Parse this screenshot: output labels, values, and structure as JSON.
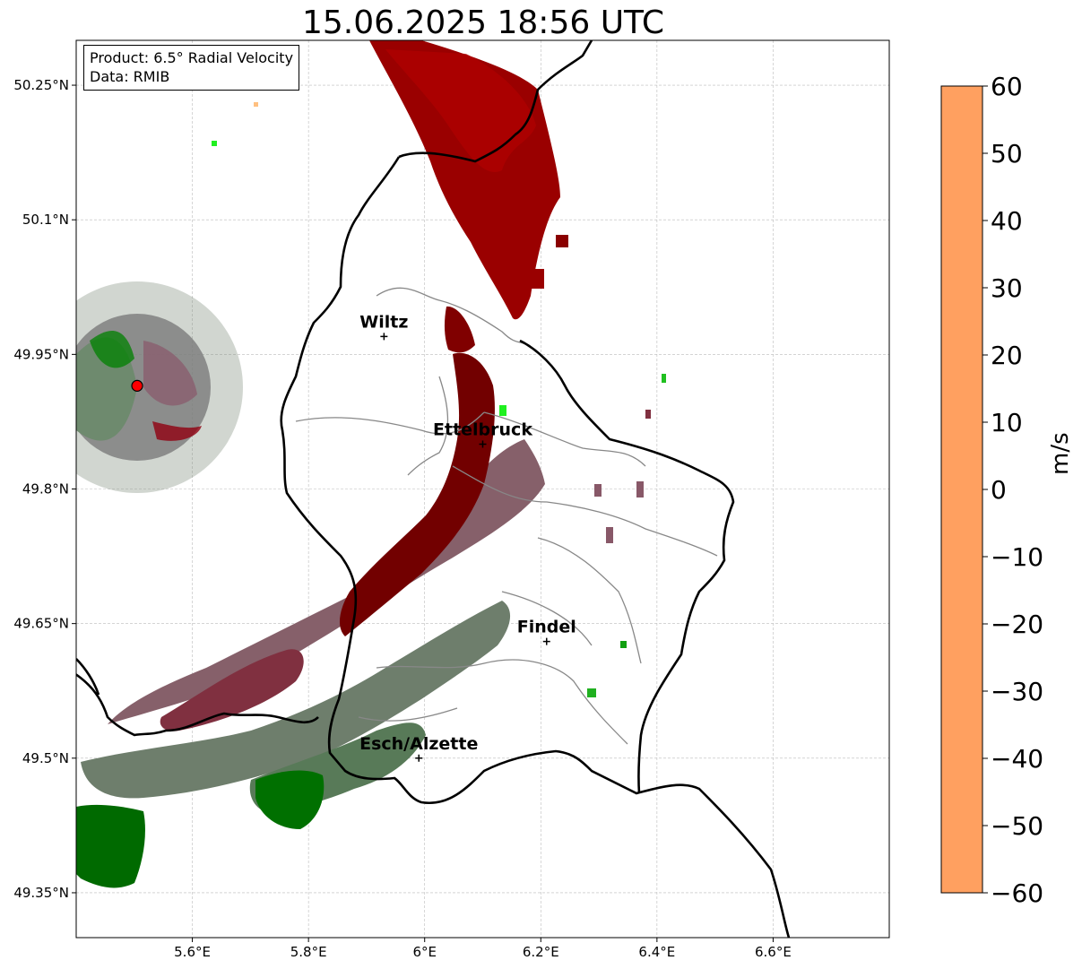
{
  "title": "15.06.2025 18:56 UTC",
  "info": {
    "line1": "Product: 6.5° Radial Velocity",
    "line2": "Data: RMIB"
  },
  "colorbar": {
    "unit": "m/s",
    "ticks": [
      "60",
      "50",
      "40",
      "30",
      "20",
      "10",
      "0",
      "−10",
      "−20",
      "−30",
      "−40",
      "−50",
      "−60"
    ],
    "stops": [
      {
        "v": 60,
        "color": "#ffa060"
      },
      {
        "v": 55,
        "color": "#ffb870"
      },
      {
        "v": 50,
        "color": "#ffd080"
      },
      {
        "v": 46,
        "color": "#ffe0a0"
      },
      {
        "v": 44,
        "color": "#ffc0b0"
      },
      {
        "v": 40,
        "color": "#ff90d0"
      },
      {
        "v": 35,
        "color": "#ff70a0"
      },
      {
        "v": 30,
        "color": "#ff5070"
      },
      {
        "v": 28,
        "color": "#ff3050"
      },
      {
        "v": 27,
        "color": "#ff0000"
      },
      {
        "v": 20,
        "color": "#d00000"
      },
      {
        "v": 15,
        "color": "#a00000"
      },
      {
        "v": 10,
        "color": "#700000"
      },
      {
        "v": 8,
        "color": "#803040"
      },
      {
        "v": 4,
        "color": "#885868"
      },
      {
        "v": 0,
        "color": "#807878"
      },
      {
        "v": -2,
        "color": "#708070"
      },
      {
        "v": -6,
        "color": "#507050"
      },
      {
        "v": -7,
        "color": "#006000"
      },
      {
        "v": -15,
        "color": "#008000"
      },
      {
        "v": -22,
        "color": "#00c000"
      },
      {
        "v": -28,
        "color": "#20ff20"
      },
      {
        "v": -32,
        "color": "#70f070"
      },
      {
        "v": -36,
        "color": "#a0f0c0"
      },
      {
        "v": -38,
        "color": "#c0f0f0"
      },
      {
        "v": -45,
        "color": "#80e8e8"
      },
      {
        "v": -53,
        "color": "#30e0e0"
      },
      {
        "v": -55,
        "color": "#20c0d0"
      },
      {
        "v": -60,
        "color": "#2080c0"
      }
    ]
  },
  "axes": {
    "lat_labels": [
      "50.25°N",
      "50.1°N",
      "49.95°N",
      "49.8°N",
      "49.65°N",
      "49.5°N",
      "49.35°N"
    ],
    "lon_labels": [
      "5.6°E",
      "5.8°E",
      "6°E",
      "6.2°E",
      "6.4°E",
      "6.6°E"
    ],
    "lon_range": [
      5.4,
      6.8
    ],
    "lat_range": [
      49.3,
      50.3
    ],
    "grid": true
  },
  "cities": [
    {
      "name": "Wiltz",
      "lon": 5.93,
      "lat": 49.97
    },
    {
      "name": "Ettelbruck",
      "lon": 6.1,
      "lat": 49.85
    },
    {
      "name": "Findel",
      "lon": 6.21,
      "lat": 49.63
    },
    {
      "name": "Esch/Alzette",
      "lon": 5.99,
      "lat": 49.5
    }
  ],
  "radar_site": {
    "lon": 5.505,
    "lat": 49.915,
    "color": "#ff0000"
  }
}
